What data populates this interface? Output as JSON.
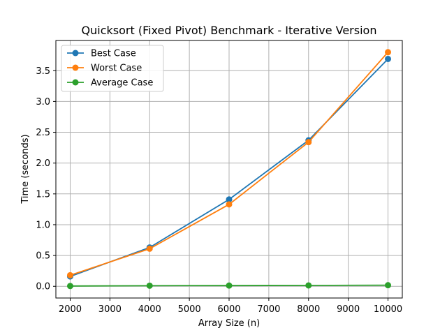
{
  "chart_data": {
    "type": "line",
    "title": "Quicksort (Fixed Pivot) Benchmark - Iterative Version",
    "xlabel": "Array Size (n)",
    "ylabel": "Time (seconds)",
    "x": [
      2000,
      4000,
      6000,
      8000,
      10000
    ],
    "xlim": [
      1640,
      10360
    ],
    "ylim": [
      -0.19,
      3.99
    ],
    "xticks": [
      2000,
      3000,
      4000,
      5000,
      6000,
      7000,
      8000,
      9000,
      10000
    ],
    "yticks": [
      0.0,
      0.5,
      1.0,
      1.5,
      2.0,
      2.5,
      3.0,
      3.5
    ],
    "ytick_labels": [
      "0.0",
      "0.5",
      "1.0",
      "1.5",
      "2.0",
      "2.5",
      "3.0",
      "3.5"
    ],
    "grid": true,
    "legend_position": "top-left",
    "series": [
      {
        "name": "Best Case",
        "color": "#1f77b4",
        "values": [
          0.16,
          0.63,
          1.41,
          2.37,
          3.69
        ]
      },
      {
        "name": "Worst Case",
        "color": "#ff7f0e",
        "values": [
          0.18,
          0.61,
          1.33,
          2.34,
          3.8
        ]
      },
      {
        "name": "Average Case",
        "color": "#2ca02c",
        "values": [
          0.005,
          0.01,
          0.012,
          0.014,
          0.018
        ]
      }
    ]
  }
}
